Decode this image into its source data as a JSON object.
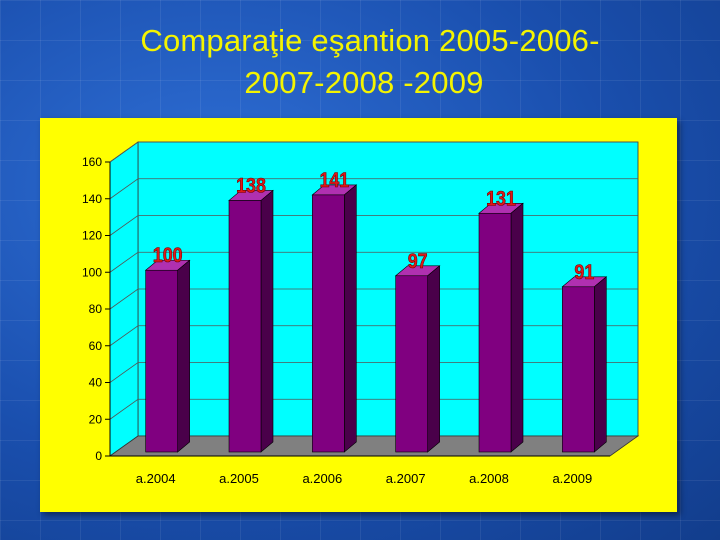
{
  "slide": {
    "title_line1": "Comparaţie eşantion 2005-2006-",
    "title_line2": "2007-2008 -2009"
  },
  "colors": {
    "slide_background": "#1d56b8",
    "title_text": "#f4f400",
    "chart_background": "#ffff00",
    "plot_wall": "#00ffff",
    "floor": "#808080",
    "bar_front": "#800080",
    "data_label": "#e01818"
  },
  "chart_data": {
    "type": "bar",
    "style": "3d-column",
    "title": "",
    "xlabel": "",
    "ylabel": "",
    "categories": [
      "a.2004",
      "a.2005",
      "a.2006",
      "a.2007",
      "a.2008",
      "a.2009"
    ],
    "values": [
      100,
      138,
      141,
      97,
      131,
      91
    ],
    "data_labels": [
      "100",
      "138",
      "141",
      "97",
      "131",
      "91"
    ],
    "ylim": [
      0,
      160
    ],
    "yticks": [
      "0",
      "20",
      "40",
      "60",
      "80",
      "100",
      "120",
      "140",
      "160"
    ],
    "grid": true,
    "legend": "none"
  }
}
